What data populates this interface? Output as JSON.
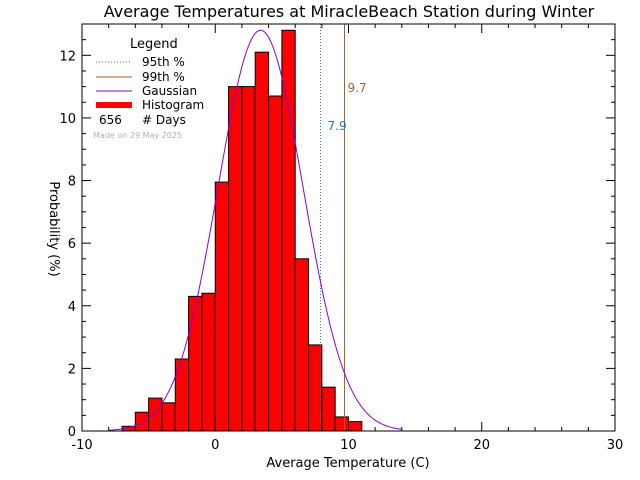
{
  "chart_data": {
    "type": "bar",
    "title": "Average Temperatures at MiracleBeach Station during Winter",
    "xlabel": "Average Temperature (C)",
    "ylabel": "Probability   (%)",
    "xlim": [
      -10,
      30
    ],
    "ylim": [
      0,
      13
    ],
    "x_ticks": [
      -10,
      0,
      10,
      20,
      30
    ],
    "y_ticks": [
      0,
      2,
      4,
      6,
      8,
      10,
      12
    ],
    "bin_width": 1,
    "bins_left": [
      -7,
      -6,
      -5,
      -4,
      -3,
      -2,
      -1,
      0,
      1,
      2,
      3,
      4,
      5,
      6,
      7,
      8,
      9,
      10,
      11,
      12
    ],
    "values": [
      0.15,
      0.6,
      1.05,
      0.9,
      2.3,
      4.3,
      4.4,
      7.95,
      11.0,
      11.0,
      12.1,
      10.7,
      12.8,
      5.5,
      2.75,
      1.4,
      0.45,
      0.3,
      0.0,
      0.0
    ],
    "gaussian": {
      "mean": 3.4,
      "sigma": 3.2,
      "peak": 12.8
    },
    "percentiles": [
      {
        "name": "95th %",
        "value": 7.9,
        "label": "7.9",
        "color": "#1f77b4"
      },
      {
        "name": "99th %",
        "value": 9.7,
        "label": "9.7",
        "color": "#a0622d"
      }
    ],
    "legend": {
      "title": "Legend",
      "items": [
        {
          "label": "95th %",
          "style": "dotted",
          "color": "#1f77b4"
        },
        {
          "label": "99th %",
          "style": "solid",
          "color": "#a0622d"
        },
        {
          "label": "Gaussian",
          "style": "solid",
          "color": "#8a00d4"
        },
        {
          "label": "Histogram",
          "style": "thick",
          "color": "#ff0000"
        }
      ],
      "days_count": "656",
      "days_label": "# Days",
      "made_on": "Made on 29 May 2025",
      "placement": "top-left"
    },
    "colors": {
      "bar_fill": "#ff0000",
      "bar_stroke": "#000000",
      "gaussian": "#8a00d4",
      "axes": "#000000"
    }
  }
}
